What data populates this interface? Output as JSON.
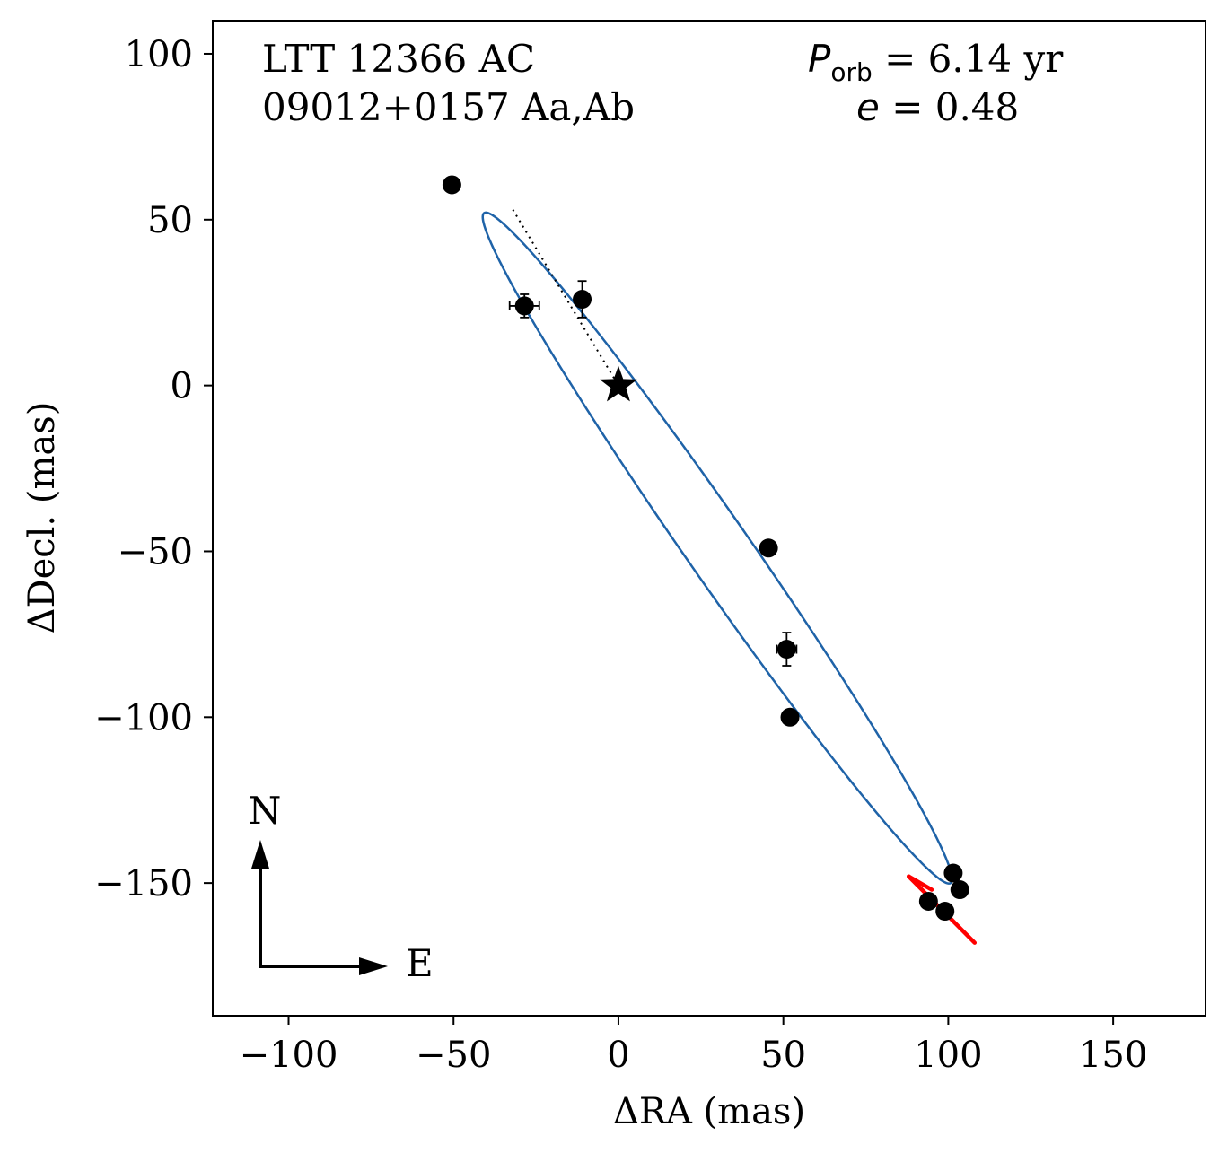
{
  "chart_data": {
    "type": "scatter",
    "system_name": "LTT 12366 AC",
    "system_id": "09012+0157 Aa,Ab",
    "period_label": "P",
    "period_subscript": "orb",
    "period_value": " =  6.14 yr",
    "ecc_label": "e",
    "ecc_value": " = 0.48",
    "xlabel": "ΔRA  (mas)",
    "ylabel": "ΔDecl.  (mas)",
    "xlim": [
      -123,
      178
    ],
    "ylim": [
      -190,
      110
    ],
    "xticks": [
      -100,
      -50,
      0,
      50,
      100,
      150
    ],
    "xtick_labels": [
      "−100",
      "−50",
      "0",
      "50",
      "100",
      "150"
    ],
    "yticks": [
      -150,
      -100,
      -50,
      0,
      50,
      100
    ],
    "ytick_labels": [
      "−150",
      "−100",
      "−50",
      "0",
      "50",
      "100"
    ],
    "orbit": {
      "center": [
        30.0,
        -49.0
      ],
      "semi_major": 123.3,
      "semi_minor": 9.5,
      "angle_deg": -55.0,
      "color": "#1f63a8"
    },
    "primary_star": [
      0,
      0
    ],
    "line_of_nodes": [
      [
        -32,
        53
      ],
      [
        0,
        0
      ]
    ],
    "points": [
      {
        "x": -50.5,
        "y": 60.5,
        "ex": 0,
        "ey": 0
      },
      {
        "x": -28.5,
        "y": 24.0,
        "ex": 4.5,
        "ey": 3.5
      },
      {
        "x": -11.0,
        "y": 26.0,
        "ex": 2.0,
        "ey": 5.5
      },
      {
        "x": 45.5,
        "y": -49.0,
        "ex": 0,
        "ey": 0
      },
      {
        "x": 51.0,
        "y": -79.5,
        "ex": 3.0,
        "ey": 5.0
      },
      {
        "x": 52.0,
        "y": -100.0,
        "ex": 0,
        "ey": 0
      },
      {
        "x": 101.5,
        "y": -147.0,
        "ex": 0,
        "ey": 0
      },
      {
        "x": 103.5,
        "y": -152.0,
        "ex": 0,
        "ey": 0
      },
      {
        "x": 94.0,
        "y": -155.5,
        "ex": 0,
        "ey": 0
      },
      {
        "x": 99.0,
        "y": -158.5,
        "ex": 0,
        "ey": 0
      }
    ],
    "residual_segments": [
      {
        "from": [
          88,
          -148
        ],
        "to": [
          108,
          -168
        ]
      },
      {
        "from": [
          88,
          -148
        ],
        "to": [
          95,
          -152
        ]
      }
    ],
    "residual_color": "#ff0000",
    "compass": {
      "north": "N",
      "east": "E"
    }
  }
}
